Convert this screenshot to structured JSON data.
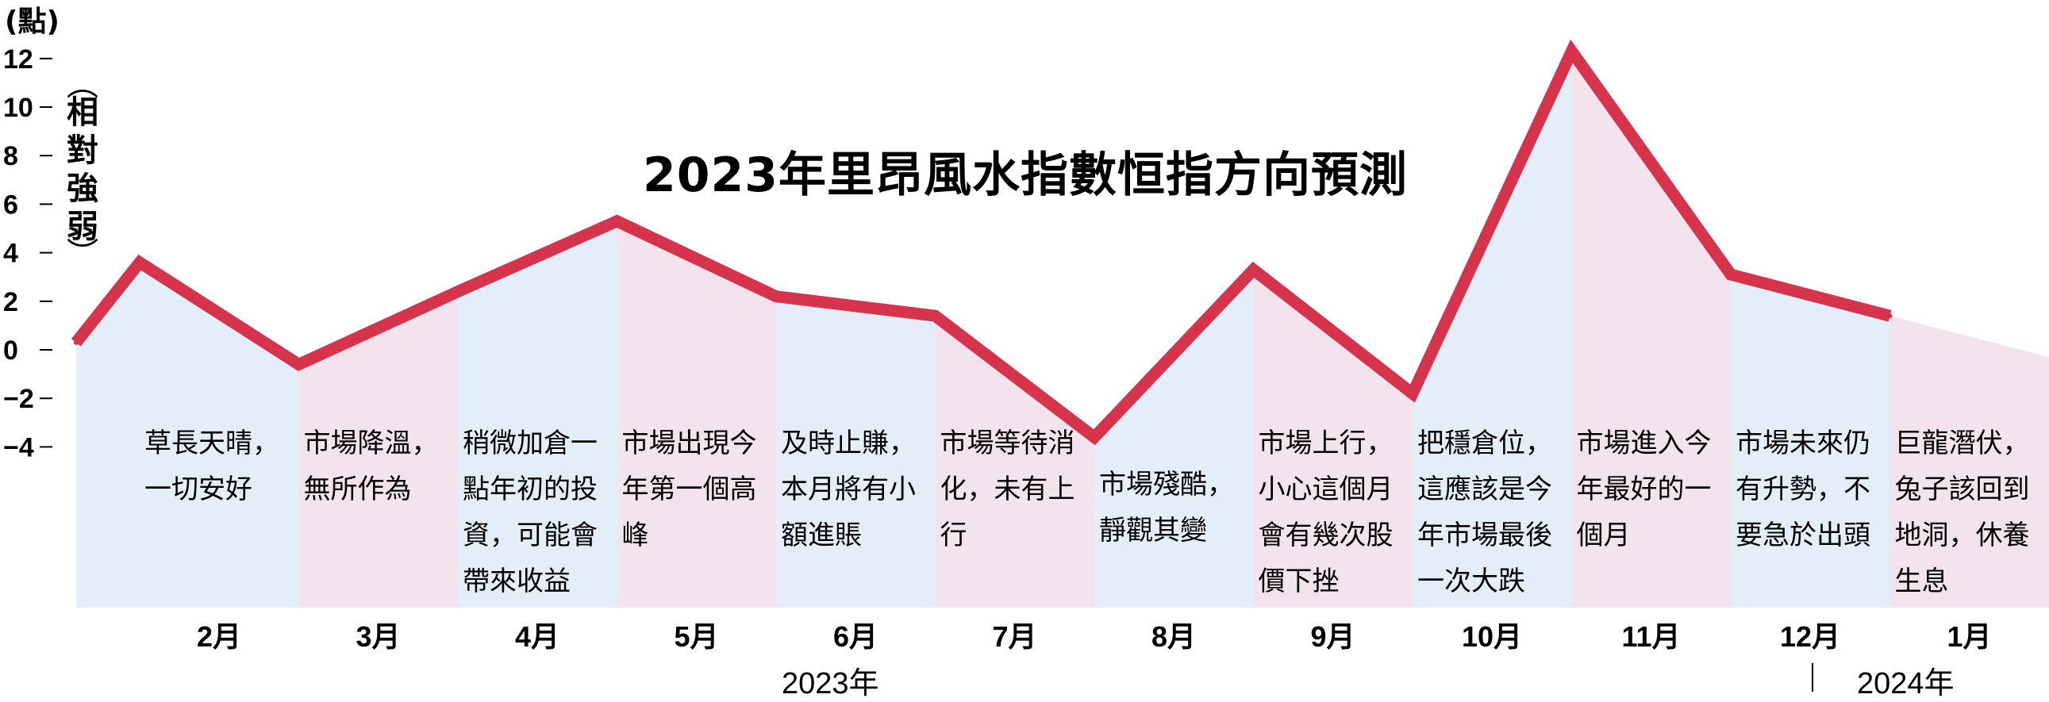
{
  "unit_label": "(點)",
  "ylabel_chars": [
    "相",
    "對",
    "強",
    "弱"
  ],
  "colors": {
    "line": "#d6334d",
    "band_blue": "#e3eef9",
    "band_pink": "#f3e3ec"
  },
  "chart_data": {
    "type": "line",
    "title": "2023年里昂風水指數恒指方向預測",
    "ylabel": "相對強弱",
    "ylim": [
      -5,
      12.7
    ],
    "yticks": [
      12,
      10,
      8,
      6,
      4,
      2,
      0,
      -2,
      -4
    ],
    "ytick_labels": [
      "12",
      "10",
      "8",
      "6",
      "4",
      "2",
      "0",
      "−2",
      "−4"
    ],
    "categories": [
      "2月",
      "3月",
      "4月",
      "5月",
      "6月",
      "7月",
      "8月",
      "9月",
      "10月",
      "11月",
      "12月",
      "1月"
    ],
    "x": [
      1.6,
      2,
      3,
      4,
      5,
      6,
      7,
      8,
      9,
      10,
      11,
      12,
      13
    ],
    "values": [
      0.3,
      3.6,
      -0.6,
      2.4,
      5.3,
      2.2,
      1.4,
      -3.6,
      3.3,
      -1.8,
      12.3,
      3.1,
      1.4
    ],
    "bands": [
      {
        "month": "2月",
        "color": "blue",
        "note": "草長天晴，一切安好"
      },
      {
        "month": "3月",
        "color": "pink",
        "note": "市場降溫，無所作為"
      },
      {
        "month": "4月",
        "color": "blue",
        "note": "稍微加倉一點年初的投資，可能會帶來收益"
      },
      {
        "month": "5月",
        "color": "pink",
        "note": "市場出現今年第一個高峰"
      },
      {
        "month": "6月",
        "color": "blue",
        "note": "及時止賺，本月將有小額進賬"
      },
      {
        "month": "7月",
        "color": "pink",
        "note": "市場等待消化，未有上行"
      },
      {
        "month": "8月",
        "color": "blue",
        "note": "市場殘酷，靜觀其變"
      },
      {
        "month": "9月",
        "color": "pink",
        "note": "市場上行，小心這個月會有幾次股價下挫"
      },
      {
        "month": "10月",
        "color": "blue",
        "note": "把穩倉位，這應該是今年市場最後一次大跌"
      },
      {
        "month": "11月",
        "color": "pink",
        "note": "市場進入今年最好的一個月"
      },
      {
        "month": "12月",
        "color": "blue",
        "note": "市場未來仍有升勢，不要急於出頭"
      },
      {
        "month": "1月",
        "color": "pink",
        "note": "巨龍潛伏，兔子該回到地洞，休養生息"
      }
    ],
    "year_labels": [
      "2023年",
      "2024年"
    ]
  }
}
